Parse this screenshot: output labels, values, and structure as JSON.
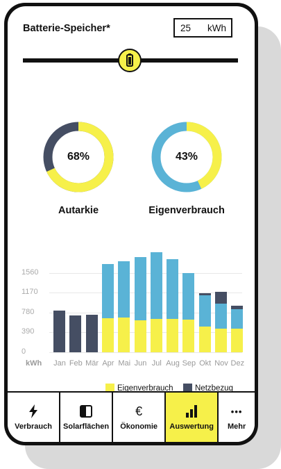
{
  "colors": {
    "yellow": "#f6f04a",
    "blue": "#5ab3d6",
    "dark": "#454e63"
  },
  "header": {
    "title": "Batterie-Speicher*",
    "capacity_value": "25",
    "capacity_unit": "kWh"
  },
  "slider": {
    "icon": "battery-icon"
  },
  "donuts": [
    {
      "value_text": "68%",
      "label": "Autarkie",
      "fraction": 0.68
    },
    {
      "value_text": "43%",
      "label": "Eigenverbrauch",
      "fraction": 0.43
    }
  ],
  "chart_data": {
    "type": "bar",
    "unit": "kWh",
    "yticks": [
      "1560",
      "1170",
      "780",
      "390",
      "0"
    ],
    "ytick_values": [
      1560,
      1170,
      780,
      390,
      0
    ],
    "ylim": [
      0,
      1950
    ],
    "categories": [
      "Jan",
      "Feb",
      "Mär",
      "Apr",
      "Mai",
      "Jun",
      "Jul",
      "Aug",
      "Sep",
      "Okt",
      "Nov",
      "Dez"
    ],
    "series": [
      {
        "name": "Eigenverbrauch",
        "color": "#f6f04a",
        "values": [
          0,
          0,
          0,
          670,
          680,
          630,
          650,
          650,
          640,
          500,
          470,
          470
        ]
      },
      {
        "name": "",
        "color": "#5ab3d6",
        "values": [
          0,
          0,
          0,
          1060,
          1100,
          1240,
          1310,
          1180,
          910,
          620,
          490,
          380
        ]
      },
      {
        "name": "Netzbezug",
        "color": "#454e63",
        "values": [
          820,
          720,
          740,
          0,
          0,
          0,
          0,
          0,
          0,
          40,
          230,
          60
        ]
      }
    ],
    "legend": [
      "Eigenverbrauch",
      "Netzbezug"
    ]
  },
  "nav": [
    {
      "label": "Verbrauch",
      "icon": "⚡"
    },
    {
      "label": "Solarflächen",
      "icon": "◧"
    },
    {
      "label": "Ökonomie",
      "icon": "€"
    },
    {
      "label": "Auswertung",
      "icon": "bar-chart"
    },
    {
      "label": "Mehr",
      "icon": "•••"
    }
  ]
}
